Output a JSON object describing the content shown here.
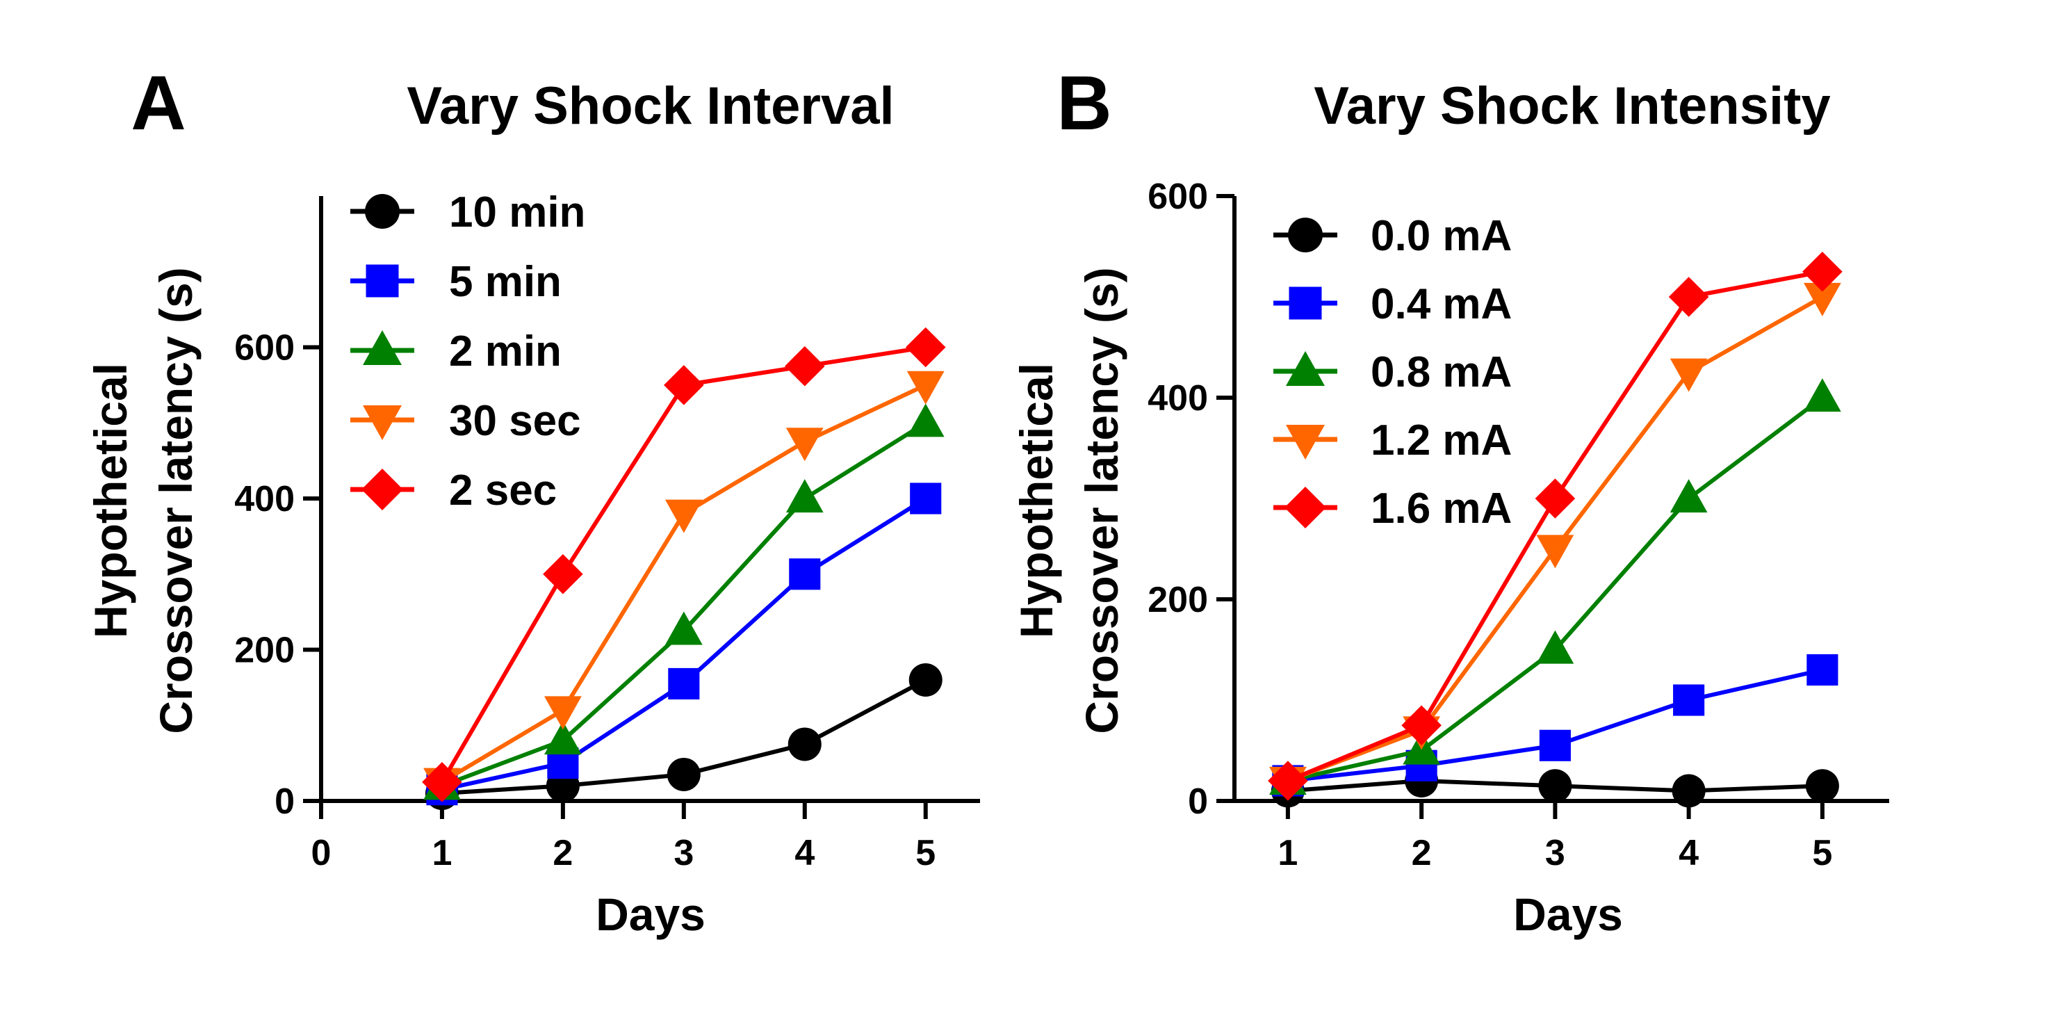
{
  "figure": {
    "panels": [
      {
        "letter": "A",
        "chart_data": {
          "type": "line",
          "title": "Vary Shock Interval",
          "xlabel": "Days",
          "ylabel_lines": [
            "Hypothetical",
            "Crossover latency (s)"
          ],
          "xlim": [
            0,
            5.45
          ],
          "ylim": [
            0,
            800
          ],
          "xticks": [
            0,
            1,
            2,
            3,
            4,
            5
          ],
          "yticks": [
            0,
            200,
            400,
            600
          ],
          "grid": false,
          "legend_position": "top-left",
          "x": [
            1,
            2,
            3,
            4,
            5
          ],
          "series": [
            {
              "name": "10 min",
              "color": "#000000",
              "marker": "circle",
              "values": [
                10,
                20,
                35,
                75,
                160
              ]
            },
            {
              "name": "5 min",
              "color": "#0000FF",
              "marker": "square",
              "values": [
                15,
                50,
                155,
                300,
                400
              ]
            },
            {
              "name": "2 min",
              "color": "#008000",
              "marker": "triangle-up",
              "values": [
                20,
                80,
                225,
                400,
                500
              ]
            },
            {
              "name": "30 sec",
              "color": "#FF6600",
              "marker": "triangle-down",
              "values": [
                25,
                120,
                380,
                475,
                550
              ]
            },
            {
              "name": "2 sec",
              "color": "#FF0000",
              "marker": "diamond",
              "values": [
                25,
                300,
                550,
                575,
                600
              ]
            }
          ]
        }
      },
      {
        "letter": "B",
        "chart_data": {
          "type": "line",
          "title": "Vary Shock Intensity",
          "xlabel": "Days",
          "ylabel_lines": [
            "Hypothetical",
            "Crossover latency (s)"
          ],
          "xlim": [
            0.6,
            5.5
          ],
          "ylim": [
            0,
            600
          ],
          "xticks": [
            1,
            2,
            3,
            4,
            5
          ],
          "yticks": [
            0,
            200,
            400,
            600
          ],
          "grid": false,
          "legend_position": "top-left",
          "x": [
            1,
            2,
            3,
            4,
            5
          ],
          "series": [
            {
              "name": "0.0 mA",
              "color": "#000000",
              "marker": "circle",
              "values": [
                10,
                20,
                15,
                10,
                15
              ]
            },
            {
              "name": "0.4 mA",
              "color": "#0000FF",
              "marker": "square",
              "values": [
                20,
                35,
                55,
                100,
                130
              ]
            },
            {
              "name": "0.8 mA",
              "color": "#008000",
              "marker": "triangle-up",
              "values": [
                20,
                50,
                150,
                300,
                400
              ]
            },
            {
              "name": "1.2 mA",
              "color": "#FF6600",
              "marker": "triangle-down",
              "values": [
                20,
                70,
                250,
                425,
                500
              ]
            },
            {
              "name": "1.6 mA",
              "color": "#FF0000",
              "marker": "diamond",
              "values": [
                20,
                75,
                300,
                500,
                525
              ]
            }
          ]
        }
      }
    ]
  }
}
